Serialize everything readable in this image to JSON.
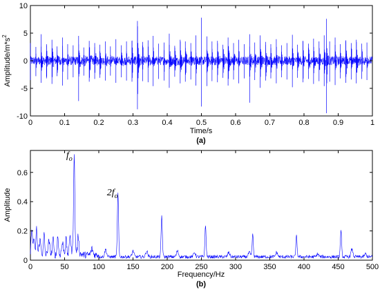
{
  "chart_data": [
    {
      "type": "line",
      "caption": "(a)",
      "xlabel": "Time/s",
      "ylabel": "Amplitude/m*s",
      "ylabel_superscript": "2",
      "xlim": [
        0,
        1
      ],
      "ylim": [
        -10,
        10
      ],
      "x_ticks": [
        "0",
        "0.1",
        "0.2",
        "0.3",
        "0.4",
        "0.5",
        "0.6",
        "0.7",
        "0.8",
        "0.9",
        "1"
      ],
      "y_ticks": [
        "-10",
        "-5",
        "0",
        "5",
        "10"
      ],
      "series": [
        {
          "color": "#0000ff",
          "description_pattern": "periodic impulses about every 0.0156 s",
          "x": [
            0.0,
            0.016,
            0.031,
            0.047,
            0.063,
            0.078,
            0.094,
            0.109,
            0.125,
            0.141,
            0.156,
            0.172,
            0.188,
            0.203,
            0.219,
            0.234,
            0.25,
            0.266,
            0.281,
            0.297,
            0.313,
            0.328,
            0.344,
            0.359,
            0.375,
            0.391,
            0.406,
            0.422,
            0.438,
            0.453,
            0.469,
            0.484,
            0.5,
            0.516,
            0.531,
            0.547,
            0.563,
            0.578,
            0.594,
            0.609,
            0.625,
            0.641,
            0.656,
            0.672,
            0.688,
            0.703,
            0.719,
            0.734,
            0.75,
            0.766,
            0.781,
            0.797,
            0.813,
            0.828,
            0.844,
            0.859,
            0.866,
            0.875,
            0.891,
            0.906,
            0.922,
            0.938,
            0.953,
            0.969,
            0.984
          ],
          "peak_up": [
            3.2,
            2.5,
            4.8,
            3.0,
            3.8,
            2.6,
            4.2,
            3.0,
            2.8,
            4.5,
            2.4,
            3.6,
            3.2,
            2.9,
            3.5,
            2.6,
            3.9,
            2.8,
            3.5,
            3.6,
            7.2,
            3.4,
            3.7,
            4.5,
            3.1,
            3.3,
            4.9,
            2.7,
            3.8,
            3.5,
            3.2,
            4.6,
            7.8,
            4.4,
            3.5,
            3.6,
            2.9,
            4.2,
            3.2,
            3.8,
            3.0,
            4.8,
            3.3,
            4.6,
            3.4,
            3.0,
            3.9,
            2.8,
            3.2,
            4.7,
            2.9,
            3.6,
            3.1,
            4.0,
            3.5,
            4.6,
            7.6,
            3.5,
            4.2,
            3.0,
            3.7,
            3.2,
            3.8,
            3.1,
            3.3
          ],
          "peak_down": [
            -3.5,
            -2.8,
            -4.0,
            -3.2,
            -4.2,
            -2.8,
            -4.5,
            -3.4,
            -3.0,
            -7.3,
            -2.7,
            -3.8,
            -3.3,
            -3.1,
            -3.6,
            -2.7,
            -4.0,
            -3.0,
            -3.6,
            -3.8,
            -8.8,
            -3.7,
            -3.9,
            -4.6,
            -3.3,
            -3.6,
            -4.9,
            -2.9,
            -4.1,
            -3.8,
            -3.4,
            -4.5,
            -8.3,
            -4.6,
            -3.7,
            -3.9,
            -3.1,
            -4.5,
            -3.4,
            -4.1,
            -3.2,
            -7.6,
            -3.5,
            -4.9,
            -3.6,
            -3.2,
            -4.1,
            -3.0,
            -3.4,
            -4.8,
            -3.1,
            -3.9,
            -3.3,
            -4.2,
            -3.7,
            -4.6,
            -9.5,
            -3.8,
            -4.4,
            -3.2,
            -4.0,
            -3.4,
            -4.1,
            -3.3,
            -3.5
          ]
        }
      ]
    },
    {
      "type": "line",
      "caption": "(b)",
      "xlabel": "Frequency/Hz",
      "ylabel": "Amplitude",
      "xlim": [
        0,
        500
      ],
      "ylim": [
        0,
        0.75
      ],
      "x_ticks": [
        "0",
        "50",
        "100",
        "150",
        "200",
        "250",
        "300",
        "350",
        "400",
        "450",
        "500"
      ],
      "y_ticks": [
        "0",
        "0.2",
        "0.4",
        "0.6"
      ],
      "annotations": [
        {
          "text": "f",
          "sub": "o",
          "x": 64,
          "y": 0.68
        },
        {
          "text": "2f",
          "sub": "o",
          "x": 128,
          "y": 0.43
        }
      ],
      "series": [
        {
          "color": "#0000ff",
          "peaks_x": [
            2,
            5,
            9,
            14,
            20,
            27,
            33,
            40,
            47,
            52,
            58,
            64,
            70,
            90,
            110,
            128,
            150,
            170,
            192,
            215,
            240,
            256,
            290,
            320,
            325,
            360,
            389,
            420,
            454,
            470,
            490
          ],
          "peaks_y": [
            0.19,
            0.12,
            0.18,
            0.1,
            0.14,
            0.09,
            0.12,
            0.13,
            0.08,
            0.11,
            0.13,
            0.66,
            0.12,
            0.04,
            0.05,
            0.43,
            0.04,
            0.04,
            0.28,
            0.04,
            0.03,
            0.21,
            0.03,
            0.03,
            0.15,
            0.03,
            0.14,
            0.02,
            0.18,
            0.05,
            0.02
          ]
        }
      ]
    }
  ]
}
